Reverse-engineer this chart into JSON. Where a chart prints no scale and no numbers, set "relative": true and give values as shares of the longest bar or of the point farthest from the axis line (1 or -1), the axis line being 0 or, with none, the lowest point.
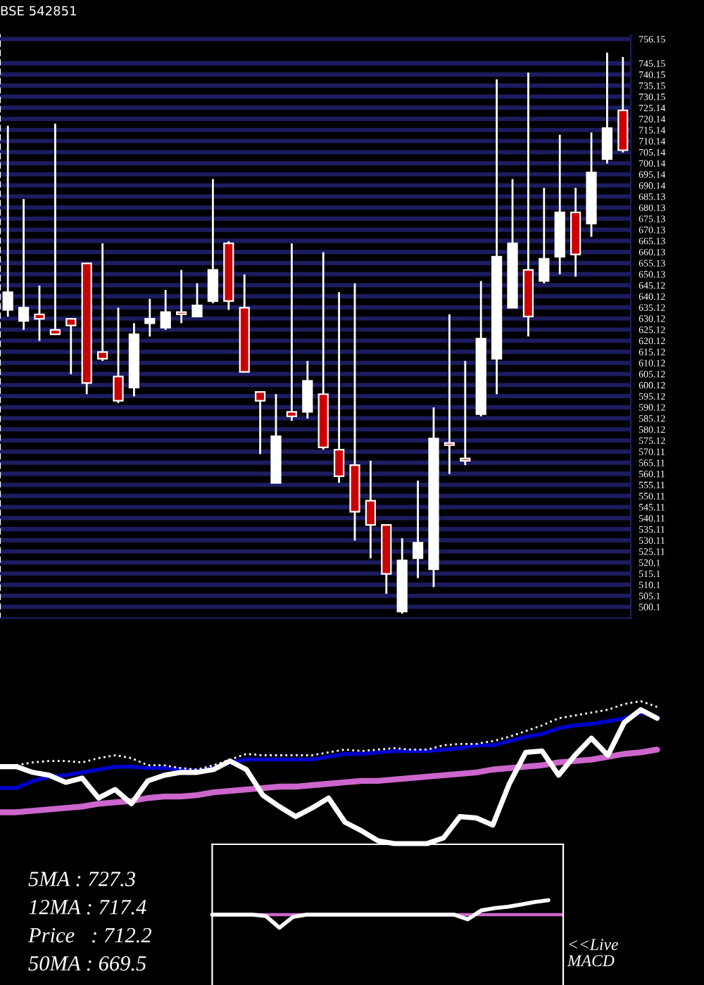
{
  "chart_data": [
    {
      "type": "candlestick",
      "title": "BSE 542851",
      "categories": [
        null,
        null,
        null,
        null,
        null,
        null,
        null,
        null,
        null,
        null,
        null,
        null,
        null,
        null,
        null,
        null,
        null,
        null,
        null,
        null,
        null,
        null,
        null,
        null,
        null,
        null,
        null,
        null,
        null,
        null,
        null,
        null,
        null,
        null,
        null,
        null,
        null,
        null,
        null,
        null
      ],
      "ohlc": [
        [
          634,
          717,
          631,
          642
        ],
        [
          629,
          684,
          625,
          635
        ],
        [
          632,
          645,
          620,
          630
        ],
        [
          625,
          718,
          623,
          623
        ],
        [
          630,
          630,
          605,
          627
        ],
        [
          655,
          655,
          596,
          601
        ],
        [
          615,
          664,
          611,
          612
        ],
        [
          604,
          635,
          592,
          593
        ],
        [
          599,
          628,
          595,
          623
        ],
        [
          628,
          639,
          622,
          630
        ],
        [
          626,
          643,
          625,
          633
        ],
        [
          633,
          652,
          628,
          632
        ],
        [
          631,
          646,
          631,
          636
        ],
        [
          638,
          693,
          637,
          652
        ],
        [
          664,
          665,
          634,
          638
        ],
        [
          635,
          650,
          606,
          606
        ],
        [
          597,
          597,
          569,
          593
        ],
        [
          556,
          596,
          556,
          577
        ],
        [
          588,
          664,
          584,
          586
        ],
        [
          588,
          611,
          585,
          602
        ],
        [
          596,
          660,
          571,
          572
        ],
        [
          571,
          642,
          556,
          559
        ],
        [
          564,
          646,
          530,
          543
        ],
        [
          548,
          566,
          522,
          537
        ],
        [
          537,
          537,
          506,
          515
        ],
        [
          498,
          531,
          497,
          521
        ],
        [
          522,
          557,
          513,
          529
        ],
        [
          517,
          590,
          509,
          576
        ],
        [
          574,
          632,
          560,
          573
        ],
        [
          567,
          611,
          564,
          566
        ],
        [
          587,
          647,
          586,
          621
        ],
        [
          612,
          738,
          596,
          658
        ],
        [
          635,
          693,
          635,
          664
        ],
        [
          652,
          741,
          622,
          631
        ],
        [
          647,
          689,
          646,
          657
        ],
        [
          658,
          713,
          650,
          678
        ],
        [
          678,
          689,
          649,
          659
        ],
        [
          673,
          714,
          667,
          696
        ],
        [
          702,
          750,
          700,
          716
        ],
        [
          724,
          748,
          705,
          706
        ]
      ],
      "colors": [
        "#ffffff",
        "#ffffff",
        "#cc0000",
        "#cc0000",
        "#cc0000",
        "#cc0000",
        "#cc0000",
        "#cc0000",
        "#ffffff",
        "#ffffff",
        "#ffffff",
        "#cc0000",
        "#ffffff",
        "#ffffff",
        "#cc0000",
        "#cc0000",
        "#cc0000",
        "#ffffff",
        "#cc0000",
        "#ffffff",
        "#cc0000",
        "#cc0000",
        "#cc0000",
        "#cc0000",
        "#cc0000",
        "#ffffff",
        "#ffffff",
        "#ffffff",
        "#cc0000",
        "#cc0000",
        "#ffffff",
        "#ffffff",
        "#ffffff",
        "#cc0000",
        "#ffffff",
        "#ffffff",
        "#cc0000",
        "#ffffff",
        "#ffffff",
        "#cc0000"
      ],
      "ylim": [
        495,
        758
      ],
      "yticks": [
        500.1,
        505.1,
        510.1,
        515.1,
        520.1,
        525.11,
        530.11,
        535.11,
        540.11,
        545.11,
        550.11,
        555.11,
        560.11,
        565.11,
        570.11,
        575.12,
        580.12,
        585.12,
        590.12,
        595.12,
        600.12,
        605.12,
        610.12,
        615.12,
        620.12,
        625.12,
        630.12,
        635.12,
        640.12,
        645.12,
        650.13,
        655.13,
        660.13,
        665.13,
        670.13,
        675.13,
        680.13,
        685.13,
        690.14,
        695.14,
        700.14,
        705.14,
        710.14,
        715.14,
        720.14,
        725.14,
        730.15,
        735.15,
        740.15,
        745.15,
        756.15
      ],
      "grid": "y",
      "tick_labels": "y"
    },
    {
      "type": "line",
      "relative": true,
      "categories": [
        null,
        null,
        null,
        null,
        null,
        null,
        null,
        null,
        null,
        null,
        null,
        null,
        null,
        null,
        null,
        null,
        null,
        null,
        null,
        null,
        null,
        null,
        null,
        null,
        null,
        null,
        null,
        null,
        null,
        null,
        null,
        null,
        null,
        null,
        null,
        null,
        null,
        null,
        null,
        null,
        null
      ],
      "series": [
        {
          "color": "#cc66cc",
          "values": [
            0.22,
            0.22,
            0.23,
            0.24,
            0.25,
            0.26,
            0.28,
            0.29,
            0.3,
            0.32,
            0.33,
            0.33,
            0.34,
            0.36,
            0.37,
            0.38,
            0.39,
            0.4,
            0.4,
            0.41,
            0.42,
            0.43,
            0.44,
            0.44,
            0.45,
            0.46,
            0.47,
            0.48,
            0.49,
            0.5,
            0.52,
            0.53,
            0.54,
            0.55,
            0.57,
            0.58,
            0.59,
            0.61,
            0.63,
            0.64,
            0.66
          ]
        },
        {
          "color": "#0000cc",
          "values": [
            0.39,
            0.39,
            0.44,
            0.47,
            0.48,
            0.5,
            0.52,
            0.54,
            0.54,
            0.53,
            0.53,
            0.52,
            0.51,
            0.53,
            0.57,
            0.59,
            0.59,
            0.59,
            0.59,
            0.59,
            0.61,
            0.63,
            0.63,
            0.64,
            0.65,
            0.65,
            0.65,
            0.66,
            0.67,
            0.69,
            0.69,
            0.72,
            0.75,
            0.77,
            0.81,
            0.83,
            0.84,
            0.86,
            0.88,
            0.92,
            0.89
          ]
        },
        {
          "color": "#ffffff",
          "values": [
            0.54,
            0.54,
            0.5,
            0.48,
            0.43,
            0.46,
            0.32,
            0.38,
            0.28,
            0.44,
            0.48,
            0.5,
            0.5,
            0.52,
            0.58,
            0.52,
            0.34,
            0.26,
            0.19,
            0.25,
            0.32,
            0.15,
            0.09,
            0.02,
            0.0,
            0.0,
            0.0,
            0.04,
            0.19,
            0.18,
            0.13,
            0.42,
            0.64,
            0.65,
            0.48,
            0.62,
            0.74,
            0.62,
            0.85,
            0.94,
            0.88
          ]
        },
        {
          "color": "#ffffff",
          "line_style": "dotted",
          "values": [
            null,
            0.55,
            0.57,
            0.58,
            0.58,
            0.57,
            0.6,
            0.62,
            0.6,
            0.55,
            0.55,
            0.53,
            0.52,
            0.55,
            0.59,
            0.63,
            0.62,
            0.62,
            0.62,
            0.62,
            0.64,
            0.66,
            0.65,
            0.66,
            0.67,
            0.66,
            0.66,
            0.69,
            0.7,
            0.7,
            0.72,
            0.75,
            0.79,
            0.83,
            0.88,
            0.9,
            0.92,
            0.94,
            0.98,
            1.0,
            0.96
          ]
        }
      ],
      "annotations": [
        "5MA : 727.3",
        "12MA : 717.4",
        "Price   : 712.2",
        "50MA : 669.5"
      ],
      "tick_labels": false
    },
    {
      "type": "line",
      "relative": true,
      "categories": [
        null,
        null,
        null,
        null,
        null,
        null,
        null,
        null,
        null,
        null,
        null,
        null,
        null,
        null,
        null,
        null,
        null,
        null,
        null,
        null,
        null,
        null,
        null,
        null,
        null,
        null
      ],
      "series": [
        {
          "color": "#ffffff",
          "values": [
            0,
            0,
            0,
            0,
            -0.1,
            -0.9,
            -0.16,
            0,
            0,
            0,
            0,
            0,
            0,
            0,
            0,
            0,
            0,
            0,
            0,
            -0.32,
            0.29,
            0.45,
            0.55,
            0.71,
            0.87,
            1.0
          ]
        }
      ],
      "ref_lines": [
        {
          "axis": "y",
          "value": 0,
          "color": "#cc66cc"
        }
      ],
      "annotations": [
        "<<Live\nMACD"
      ],
      "tick_labels": false
    }
  ]
}
